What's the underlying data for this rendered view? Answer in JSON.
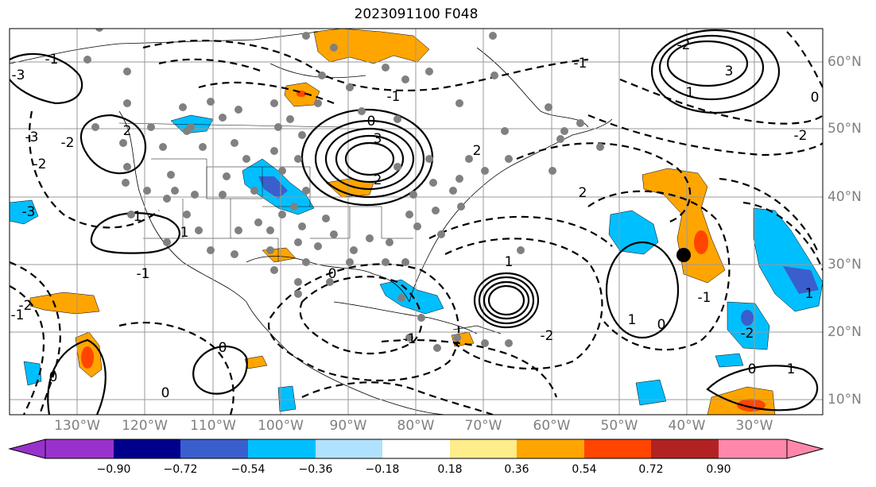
{
  "title": "2023091100 F048",
  "map": {
    "lon_range": [
      -138,
      -20
    ],
    "lat_range": [
      7,
      65
    ],
    "lon_labels": [
      "130°W",
      "120°W",
      "110°W",
      "100°W",
      "90°W",
      "80°W",
      "70°W",
      "60°W",
      "50°W",
      "40°W",
      "30°W"
    ],
    "lat_labels": [
      "60°N",
      "50°N",
      "40°N",
      "30°N",
      "20°N",
      "10°N"
    ],
    "contour_labels": [
      "-3",
      "-1",
      "-2",
      "-2",
      "0",
      "3",
      "2",
      "-2",
      "-1",
      "-3",
      "1",
      "2",
      "3",
      "-2",
      "-3",
      "-1",
      "0",
      "1",
      "0",
      "2",
      "1",
      "-1",
      "-2",
      "1",
      "0",
      "1",
      "0",
      "-1",
      "-2",
      "-2",
      "-1",
      "0",
      "1",
      "2",
      "-1",
      "0",
      "1",
      "0"
    ],
    "marker": {
      "lon": -39.5,
      "lat": 31.5
    }
  },
  "colorbar": {
    "ticks": [
      "−0.90",
      "−0.72",
      "−0.54",
      "−0.36",
      "−0.18",
      "0.18",
      "0.36",
      "0.54",
      "0.72",
      "0.90"
    ],
    "colors": [
      "#9932cc",
      "#00008b",
      "#3a5fcd",
      "#00bfff",
      "#b0e2ff",
      "#ffffff",
      "#ffec8b",
      "#ffa500",
      "#ff4500",
      "#b22222",
      "#ff88aa"
    ]
  }
}
